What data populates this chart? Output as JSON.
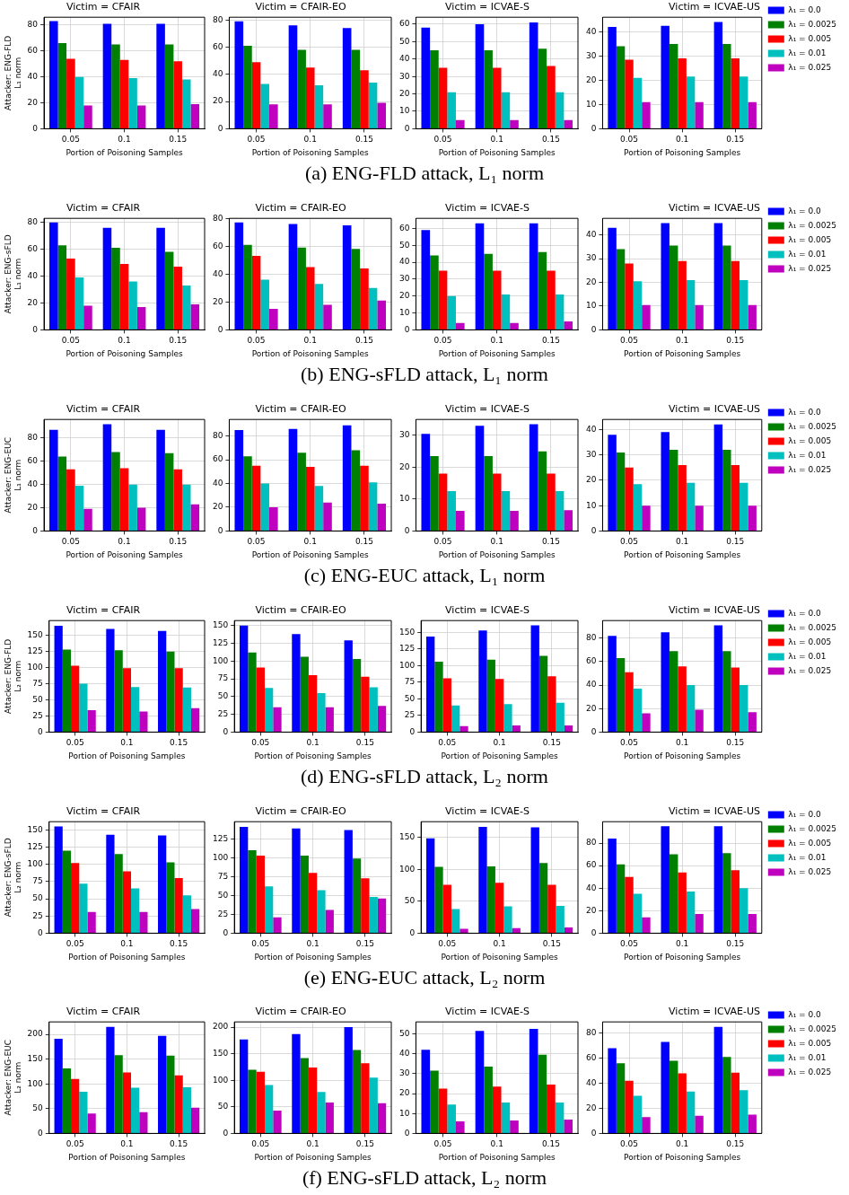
{
  "chart_data": [
    {
      "type": "bar",
      "title": "Victim = CFAIR",
      "xlabel": "Portion of Poisoning Samples",
      "ylabel": "Attacker: ENG-FLD\nL₁ norm",
      "categories": [
        "0.05",
        "0.1",
        "0.15"
      ],
      "ylim": [
        0,
        86
      ],
      "yticks": [
        0,
        20,
        40,
        60,
        80
      ],
      "grid": true,
      "annotations": [
        "(a) ENG-FLD attack, L₁ norm"
      ],
      "series": [
        {
          "color": "#0000ff",
          "values": [
            83,
            81,
            81
          ]
        },
        {
          "color": "#008000",
          "values": [
            66,
            65,
            65
          ]
        },
        {
          "color": "#ff0000",
          "values": [
            54,
            53,
            52
          ]
        },
        {
          "color": "#00bfbf",
          "values": [
            40,
            39,
            38
          ]
        },
        {
          "color": "#bf00bf",
          "values": [
            18,
            18,
            19
          ]
        }
      ]
    },
    {
      "type": "bar",
      "title": "Victim = CFAIR-EO",
      "xlabel": "Portion of Poisoning Samples",
      "categories": [
        "0.05",
        "0.1",
        "0.15"
      ],
      "ylim": [
        0,
        82
      ],
      "yticks": [
        0,
        20,
        40,
        60,
        80
      ],
      "grid": true,
      "series": [
        {
          "color": "#0000ff",
          "values": [
            79,
            76,
            74
          ]
        },
        {
          "color": "#008000",
          "values": [
            61,
            58,
            58
          ]
        },
        {
          "color": "#ff0000",
          "values": [
            49,
            45,
            43
          ]
        },
        {
          "color": "#00bfbf",
          "values": [
            33,
            32,
            34
          ]
        },
        {
          "color": "#bf00bf",
          "values": [
            18,
            18,
            19
          ]
        }
      ]
    },
    {
      "type": "bar",
      "title": "Victim = ICVAE-S",
      "xlabel": "Portion of Poisoning Samples",
      "categories": [
        "0.05",
        "0.1",
        "0.15"
      ],
      "ylim": [
        0,
        64
      ],
      "yticks": [
        0,
        10,
        20,
        30,
        40,
        50,
        60
      ],
      "grid": true,
      "series": [
        {
          "color": "#0000ff",
          "values": [
            58,
            60,
            61
          ]
        },
        {
          "color": "#008000",
          "values": [
            45,
            45,
            46
          ]
        },
        {
          "color": "#ff0000",
          "values": [
            35,
            35,
            36
          ]
        },
        {
          "color": "#00bfbf",
          "values": [
            21,
            21,
            21
          ]
        },
        {
          "color": "#bf00bf",
          "values": [
            5,
            5,
            5
          ]
        }
      ]
    },
    {
      "type": "bar",
      "title": "Victim = ICVAE-US",
      "xlabel": "Portion of Poisoning Samples",
      "categories": [
        "0.05",
        "0.1",
        "0.15"
      ],
      "ylim": [
        0,
        46
      ],
      "yticks": [
        0,
        10,
        20,
        30,
        40
      ],
      "grid": true,
      "legend": "right",
      "series": [
        {
          "name": "λ₁ = 0.0",
          "color": "#0000ff",
          "values": [
            42,
            42.5,
            44
          ]
        },
        {
          "name": "λ₁ = 0.0025",
          "color": "#008000",
          "values": [
            34,
            35,
            35
          ]
        },
        {
          "name": "λ₁ = 0.005",
          "color": "#ff0000",
          "values": [
            28.5,
            29,
            29
          ]
        },
        {
          "name": "λ₁ = 0.01",
          "color": "#00bfbf",
          "values": [
            21,
            21.5,
            21.5
          ]
        },
        {
          "name": "λ₁ = 0.025",
          "color": "#bf00bf",
          "values": [
            11,
            11,
            11
          ]
        }
      ]
    },
    {
      "type": "bar",
      "title": "Victim = CFAIR",
      "xlabel": "Portion of Poisoning Samples",
      "ylabel": "Attacker: ENG-sFLD\nL₁ norm",
      "categories": [
        "0.05",
        "0.1",
        "0.15"
      ],
      "ylim": [
        0,
        83
      ],
      "yticks": [
        0,
        20,
        40,
        60,
        80
      ],
      "grid": true,
      "annotations": [
        "(b) ENG-sFLD attack, L₁ norm"
      ],
      "series": [
        {
          "color": "#0000ff",
          "values": [
            80,
            76,
            76
          ]
        },
        {
          "color": "#008000",
          "values": [
            63,
            61,
            58
          ]
        },
        {
          "color": "#ff0000",
          "values": [
            53,
            49,
            47
          ]
        },
        {
          "color": "#00bfbf",
          "values": [
            39,
            36,
            33
          ]
        },
        {
          "color": "#bf00bf",
          "values": [
            18,
            17,
            19
          ]
        }
      ]
    },
    {
      "type": "bar",
      "title": "Victim = CFAIR-EO",
      "xlabel": "Portion of Poisoning Samples",
      "categories": [
        "0.05",
        "0.1",
        "0.15"
      ],
      "ylim": [
        0,
        80
      ],
      "yticks": [
        0,
        20,
        40,
        60,
        80
      ],
      "grid": true,
      "series": [
        {
          "color": "#0000ff",
          "values": [
            77,
            76,
            75
          ]
        },
        {
          "color": "#008000",
          "values": [
            61,
            59,
            58
          ]
        },
        {
          "color": "#ff0000",
          "values": [
            53,
            45,
            44
          ]
        },
        {
          "color": "#00bfbf",
          "values": [
            36,
            33,
            30
          ]
        },
        {
          "color": "#bf00bf",
          "values": [
            15,
            18,
            21
          ]
        }
      ]
    },
    {
      "type": "bar",
      "title": "Victim = ICVAE-S",
      "xlabel": "Portion of Poisoning Samples",
      "categories": [
        "0.05",
        "0.1",
        "0.15"
      ],
      "ylim": [
        0,
        66
      ],
      "yticks": [
        0,
        10,
        20,
        30,
        40,
        50,
        60
      ],
      "grid": true,
      "series": [
        {
          "color": "#0000ff",
          "values": [
            59,
            63,
            63
          ]
        },
        {
          "color": "#008000",
          "values": [
            44,
            45,
            46
          ]
        },
        {
          "color": "#ff0000",
          "values": [
            35,
            35,
            35
          ]
        },
        {
          "color": "#00bfbf",
          "values": [
            20,
            21,
            21
          ]
        },
        {
          "color": "#bf00bf",
          "values": [
            4,
            4,
            5
          ]
        }
      ]
    },
    {
      "type": "bar",
      "title": "Victim = ICVAE-US",
      "xlabel": "Portion of Poisoning Samples",
      "categories": [
        "0.05",
        "0.1",
        "0.15"
      ],
      "ylim": [
        0,
        47
      ],
      "yticks": [
        0,
        10,
        20,
        30,
        40
      ],
      "grid": true,
      "legend": "right",
      "series": [
        {
          "name": "λ₁ = 0.0",
          "color": "#0000ff",
          "values": [
            43,
            45,
            45
          ]
        },
        {
          "name": "λ₁ = 0.0025",
          "color": "#008000",
          "values": [
            34,
            35.5,
            35.5
          ]
        },
        {
          "name": "λ₁ = 0.005",
          "color": "#ff0000",
          "values": [
            28,
            29,
            29
          ]
        },
        {
          "name": "λ₁ = 0.01",
          "color": "#00bfbf",
          "values": [
            20.5,
            21,
            21
          ]
        },
        {
          "name": "λ₁ = 0.025",
          "color": "#bf00bf",
          "values": [
            10.5,
            10.5,
            10.5
          ]
        }
      ]
    },
    {
      "type": "bar",
      "title": "Victim = CFAIR",
      "xlabel": "Portion of Poisoning Samples",
      "ylabel": "Attacker: ENG-EUC\nL₁ norm",
      "categories": [
        "0.05",
        "0.1",
        "0.15"
      ],
      "ylim": [
        0,
        96
      ],
      "yticks": [
        0,
        20,
        40,
        60,
        80
      ],
      "grid": true,
      "annotations": [
        "(c) ENG-EUC attack, L₁ norm"
      ],
      "series": [
        {
          "color": "#0000ff",
          "values": [
            87,
            92,
            87
          ]
        },
        {
          "color": "#008000",
          "values": [
            64,
            68,
            67
          ]
        },
        {
          "color": "#ff0000",
          "values": [
            53,
            54,
            53
          ]
        },
        {
          "color": "#00bfbf",
          "values": [
            39,
            40,
            40
          ]
        },
        {
          "color": "#bf00bf",
          "values": [
            19,
            20,
            23
          ]
        }
      ]
    },
    {
      "type": "bar",
      "title": "Victim = CFAIR-EO",
      "xlabel": "Portion of Poisoning Samples",
      "categories": [
        "0.05",
        "0.1",
        "0.15"
      ],
      "ylim": [
        0,
        94
      ],
      "yticks": [
        0,
        20,
        40,
        60,
        80
      ],
      "grid": true,
      "series": [
        {
          "color": "#0000ff",
          "values": [
            85,
            86,
            89
          ]
        },
        {
          "color": "#008000",
          "values": [
            63,
            66,
            68
          ]
        },
        {
          "color": "#ff0000",
          "values": [
            55,
            54,
            55
          ]
        },
        {
          "color": "#00bfbf",
          "values": [
            40,
            38,
            41
          ]
        },
        {
          "color": "#bf00bf",
          "values": [
            20,
            24,
            23
          ]
        }
      ]
    },
    {
      "type": "bar",
      "title": "Victim = ICVAE-S",
      "xlabel": "Portion of Poisoning Samples",
      "categories": [
        "0.05",
        "0.1",
        "0.15"
      ],
      "ylim": [
        0,
        35
      ],
      "yticks": [
        0,
        10,
        20,
        30
      ],
      "grid": true,
      "series": [
        {
          "color": "#0000ff",
          "values": [
            30.5,
            33,
            33.5
          ]
        },
        {
          "color": "#008000",
          "values": [
            23.5,
            23.5,
            25
          ]
        },
        {
          "color": "#ff0000",
          "values": [
            18,
            18,
            18
          ]
        },
        {
          "color": "#00bfbf",
          "values": [
            12.5,
            12.5,
            12.5
          ]
        },
        {
          "color": "#bf00bf",
          "values": [
            6.3,
            6.3,
            6.5
          ]
        }
      ]
    },
    {
      "type": "bar",
      "title": "Victim = ICVAE-US",
      "xlabel": "Portion of Poisoning Samples",
      "categories": [
        "0.05",
        "0.1",
        "0.15"
      ],
      "ylim": [
        0,
        44
      ],
      "yticks": [
        0,
        10,
        20,
        30,
        40
      ],
      "grid": true,
      "legend": "right",
      "series": [
        {
          "name": "λ₁ = 0.0",
          "color": "#0000ff",
          "values": [
            38,
            39,
            42
          ]
        },
        {
          "name": "λ₁ = 0.0025",
          "color": "#008000",
          "values": [
            31,
            32,
            32
          ]
        },
        {
          "name": "λ₁ = 0.005",
          "color": "#ff0000",
          "values": [
            25,
            26,
            26
          ]
        },
        {
          "name": "λ₁ = 0.01",
          "color": "#00bfbf",
          "values": [
            18.5,
            19,
            19
          ]
        },
        {
          "name": "λ₁ = 0.025",
          "color": "#bf00bf",
          "values": [
            10,
            10,
            10
          ]
        }
      ]
    },
    {
      "type": "bar",
      "title": "Victim = CFAIR",
      "xlabel": "Portion of Poisoning Samples",
      "ylabel": "Attacker: ENG-FLD\nL₂ norm",
      "categories": [
        "0.05",
        "0.1",
        "0.15"
      ],
      "ylim": [
        0,
        173
      ],
      "yticks": [
        0,
        25,
        50,
        75,
        100,
        125,
        150
      ],
      "grid": true,
      "annotations": [
        "(d) ENG-sFLD attack, L₂ norm"
      ],
      "series": [
        {
          "color": "#0000ff",
          "values": [
            165,
            160,
            157
          ]
        },
        {
          "color": "#008000",
          "values": [
            128,
            127,
            125
          ]
        },
        {
          "color": "#ff0000",
          "values": [
            103,
            99,
            99
          ]
        },
        {
          "color": "#00bfbf",
          "values": [
            75,
            70,
            69
          ]
        },
        {
          "color": "#bf00bf",
          "values": [
            34,
            32,
            37
          ]
        }
      ]
    },
    {
      "type": "bar",
      "title": "Victim = CFAIR-EO",
      "xlabel": "Portion of Poisoning Samples",
      "categories": [
        "0.05",
        "0.1",
        "0.15"
      ],
      "ylim": [
        0,
        157
      ],
      "yticks": [
        0,
        25,
        50,
        75,
        100,
        125,
        150
      ],
      "grid": true,
      "series": [
        {
          "color": "#0000ff",
          "values": [
            150,
            138,
            129
          ]
        },
        {
          "color": "#008000",
          "values": [
            112,
            106,
            103
          ]
        },
        {
          "color": "#ff0000",
          "values": [
            91,
            80,
            78
          ]
        },
        {
          "color": "#00bfbf",
          "values": [
            62,
            55,
            63
          ]
        },
        {
          "color": "#bf00bf",
          "values": [
            35,
            35,
            37
          ]
        }
      ]
    },
    {
      "type": "bar",
      "title": "Victim = ICVAE-S",
      "xlabel": "Portion of Poisoning Samples",
      "categories": [
        "0.05",
        "0.1",
        "0.15"
      ],
      "ylim": [
        0,
        168
      ],
      "yticks": [
        0,
        25,
        50,
        75,
        100,
        125,
        150
      ],
      "grid": true,
      "series": [
        {
          "color": "#0000ff",
          "values": [
            144,
            153,
            161
          ]
        },
        {
          "color": "#008000",
          "values": [
            106,
            109,
            115
          ]
        },
        {
          "color": "#ff0000",
          "values": [
            81,
            80,
            84
          ]
        },
        {
          "color": "#00bfbf",
          "values": [
            40,
            42,
            44
          ]
        },
        {
          "color": "#bf00bf",
          "values": [
            9,
            10,
            10
          ]
        }
      ]
    },
    {
      "type": "bar",
      "title": "Victim = ICVAE-US",
      "xlabel": "Portion of Poisoning Samples",
      "categories": [
        "0.05",
        "0.1",
        "0.15"
      ],
      "ylim": [
        0,
        95
      ],
      "yticks": [
        0,
        20,
        40,
        60,
        80
      ],
      "grid": true,
      "legend": "right",
      "series": [
        {
          "name": "λ₁ = 0.0",
          "color": "#0000ff",
          "values": [
            82,
            85,
            91
          ]
        },
        {
          "name": "λ₁ = 0.0025",
          "color": "#008000",
          "values": [
            63,
            69,
            69
          ]
        },
        {
          "name": "λ₁ = 0.005",
          "color": "#ff0000",
          "values": [
            51,
            56,
            55
          ]
        },
        {
          "name": "λ₁ = 0.01",
          "color": "#00bfbf",
          "values": [
            37,
            40,
            40
          ]
        },
        {
          "name": "λ₁ = 0.025",
          "color": "#bf00bf",
          "values": [
            16,
            19,
            17
          ]
        }
      ]
    },
    {
      "type": "bar",
      "title": "Victim = CFAIR",
      "xlabel": "Portion of Poisoning Samples",
      "ylabel": "Attacker: ENG-sFLD\nL₂ norm",
      "categories": [
        "0.05",
        "0.1",
        "0.15"
      ],
      "ylim": [
        0,
        162
      ],
      "yticks": [
        0,
        25,
        50,
        75,
        100,
        125,
        150
      ],
      "grid": true,
      "annotations": [
        "(e) ENG-EUC attack, L₂ norm"
      ],
      "series": [
        {
          "color": "#0000ff",
          "values": [
            155,
            143,
            142
          ]
        },
        {
          "color": "#008000",
          "values": [
            120,
            115,
            103
          ]
        },
        {
          "color": "#ff0000",
          "values": [
            102,
            90,
            80
          ]
        },
        {
          "color": "#00bfbf",
          "values": [
            72,
            65,
            55
          ]
        },
        {
          "color": "#bf00bf",
          "values": [
            31,
            31,
            35
          ]
        }
      ]
    },
    {
      "type": "bar",
      "title": "Victim = CFAIR-EO",
      "xlabel": "Portion of Poisoning Samples",
      "categories": [
        "0.05",
        "0.1",
        "0.15"
      ],
      "ylim": [
        0,
        148
      ],
      "yticks": [
        0,
        25,
        50,
        75,
        100,
        125
      ],
      "grid": true,
      "series": [
        {
          "color": "#0000ff",
          "values": [
            141,
            139,
            137
          ]
        },
        {
          "color": "#008000",
          "values": [
            110,
            103,
            99
          ]
        },
        {
          "color": "#ff0000",
          "values": [
            103,
            80,
            73
          ]
        },
        {
          "color": "#00bfbf",
          "values": [
            62,
            57,
            48
          ]
        },
        {
          "color": "#bf00bf",
          "values": [
            21,
            31,
            46
          ]
        }
      ]
    },
    {
      "type": "bar",
      "title": "Victim = ICVAE-S",
      "xlabel": "Portion of Poisoning Samples",
      "categories": [
        "0.05",
        "0.1",
        "0.15"
      ],
      "ylim": [
        0,
        175
      ],
      "yticks": [
        0,
        50,
        100,
        150
      ],
      "grid": true,
      "series": [
        {
          "color": "#0000ff",
          "values": [
            149,
            167,
            166
          ]
        },
        {
          "color": "#008000",
          "values": [
            104,
            105,
            110
          ]
        },
        {
          "color": "#ff0000",
          "values": [
            76,
            79,
            76
          ]
        },
        {
          "color": "#00bfbf",
          "values": [
            38,
            42,
            43
          ]
        },
        {
          "color": "#bf00bf",
          "values": [
            7,
            8,
            9
          ]
        }
      ]
    },
    {
      "type": "bar",
      "title": "Victim = ICVAE-US",
      "xlabel": "Portion of Poisoning Samples",
      "categories": [
        "0.05",
        "0.1",
        "0.15"
      ],
      "ylim": [
        0,
        99
      ],
      "yticks": [
        0,
        20,
        40,
        60,
        80
      ],
      "grid": true,
      "legend": "right",
      "series": [
        {
          "name": "λ₁ = 0.0",
          "color": "#0000ff",
          "values": [
            84,
            95,
            95
          ]
        },
        {
          "name": "λ₁ = 0.0025",
          "color": "#008000",
          "values": [
            61,
            70,
            71
          ]
        },
        {
          "name": "λ₁ = 0.005",
          "color": "#ff0000",
          "values": [
            50,
            54,
            56
          ]
        },
        {
          "name": "λ₁ = 0.01",
          "color": "#00bfbf",
          "values": [
            35,
            37,
            40
          ]
        },
        {
          "name": "λ₁ = 0.025",
          "color": "#bf00bf",
          "values": [
            14,
            17,
            17
          ]
        }
      ]
    },
    {
      "type": "bar",
      "title": "Victim = CFAIR",
      "xlabel": "Portion of Poisoning Samples",
      "ylabel": "Attacker: ENG-EUC\nL₂ norm",
      "categories": [
        "0.05",
        "0.1",
        "0.15"
      ],
      "ylim": [
        0,
        225
      ],
      "yticks": [
        0,
        50,
        100,
        150,
        200
      ],
      "grid": true,
      "annotations": [
        "(f) ENG-sFLD attack, L₂ norm"
      ],
      "series": [
        {
          "color": "#0000ff",
          "values": [
            191,
            215,
            197
          ]
        },
        {
          "color": "#008000",
          "values": [
            131,
            158,
            157
          ]
        },
        {
          "color": "#ff0000",
          "values": [
            110,
            123,
            117
          ]
        },
        {
          "color": "#00bfbf",
          "values": [
            84,
            92,
            93
          ]
        },
        {
          "color": "#bf00bf",
          "values": [
            40,
            43,
            52
          ]
        }
      ]
    },
    {
      "type": "bar",
      "title": "Victim = CFAIR-EO",
      "xlabel": "Portion of Poisoning Samples",
      "categories": [
        "0.05",
        "0.1",
        "0.15"
      ],
      "ylim": [
        0,
        210
      ],
      "yticks": [
        0,
        50,
        100,
        150,
        200
      ],
      "grid": true,
      "series": [
        {
          "color": "#0000ff",
          "values": [
            177,
            187,
            200
          ]
        },
        {
          "color": "#008000",
          "values": [
            120,
            142,
            157
          ]
        },
        {
          "color": "#ff0000",
          "values": [
            116,
            124,
            132
          ]
        },
        {
          "color": "#00bfbf",
          "values": [
            91,
            78,
            105
          ]
        },
        {
          "color": "#bf00bf",
          "values": [
            43,
            58,
            57
          ]
        }
      ]
    },
    {
      "type": "bar",
      "title": "Victim = ICVAE-S",
      "xlabel": "Portion of Poisoning Samples",
      "categories": [
        "0.05",
        "0.1",
        "0.15"
      ],
      "ylim": [
        0,
        56
      ],
      "yticks": [
        0,
        10,
        20,
        30,
        40,
        50
      ],
      "grid": true,
      "series": [
        {
          "color": "#0000ff",
          "values": [
            42,
            51.5,
            52.5
          ]
        },
        {
          "color": "#008000",
          "values": [
            31.5,
            33.5,
            39.5
          ]
        },
        {
          "color": "#ff0000",
          "values": [
            22.5,
            23.5,
            24.5
          ]
        },
        {
          "color": "#00bfbf",
          "values": [
            14.5,
            15.5,
            15.5
          ]
        },
        {
          "color": "#bf00bf",
          "values": [
            6,
            6.5,
            7
          ]
        }
      ]
    },
    {
      "type": "bar",
      "title": "Victim = ICVAE-US",
      "xlabel": "Portion of Poisoning Samples",
      "categories": [
        "0.05",
        "0.1",
        "0.15"
      ],
      "ylim": [
        0,
        89
      ],
      "yticks": [
        0,
        20,
        40,
        60,
        80
      ],
      "grid": true,
      "legend": "right",
      "series": [
        {
          "name": "λ₁ = 0.0",
          "color": "#0000ff",
          "values": [
            68,
            73,
            85
          ]
        },
        {
          "name": "λ₁ = 0.0025",
          "color": "#008000",
          "values": [
            56,
            58,
            61
          ]
        },
        {
          "name": "λ₁ = 0.005",
          "color": "#ff0000",
          "values": [
            42,
            48,
            48.5
          ]
        },
        {
          "name": "λ₁ = 0.01",
          "color": "#00bfbf",
          "values": [
            30,
            33.5,
            34.5
          ]
        },
        {
          "name": "λ₁ = 0.025",
          "color": "#bf00bf",
          "values": [
            13,
            14,
            15
          ]
        }
      ]
    }
  ]
}
